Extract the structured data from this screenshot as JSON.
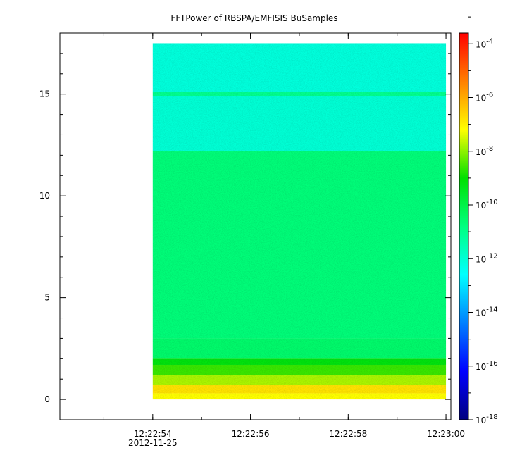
{
  "chart_data": {
    "type": "heatmap",
    "title": "FFTPower of RBSPA/EMFISIS  BuSamples",
    "xlabel": "",
    "ylabel": "",
    "x_tick_labels": [
      "12:22:54",
      "12:22:56",
      "12:22:58",
      "12:23:00"
    ],
    "x_date_label": "2012-11-25",
    "xlim_seconds": [
      -1.9,
      6.1
    ],
    "data_x_range_seconds": [
      0,
      6
    ],
    "y_ticks": [
      0,
      5,
      10,
      15
    ],
    "ylim": [
      -1,
      18
    ],
    "data_y_range": [
      0,
      17.5
    ],
    "colorbar": {
      "scale": "log",
      "range": [
        -18,
        -3.6
      ],
      "tick_exponents": [
        -4,
        -6,
        -8,
        -10,
        -12,
        -14,
        -16,
        -18
      ],
      "tick_base": "10"
    },
    "bands": [
      {
        "y_from": 0.0,
        "y_to": 0.3,
        "log_power": -7.2
      },
      {
        "y_from": 0.3,
        "y_to": 0.7,
        "log_power": -6.8
      },
      {
        "y_from": 0.7,
        "y_to": 1.2,
        "log_power": -7.8
      },
      {
        "y_from": 1.2,
        "y_to": 1.7,
        "log_power": -8.6
      },
      {
        "y_from": 1.7,
        "y_to": 2.0,
        "log_power": -9.2
      },
      {
        "y_from": 2.0,
        "y_to": 3.0,
        "log_power": -10.5
      },
      {
        "y_from": 3.0,
        "y_to": 12.2,
        "log_power": -10.7
      },
      {
        "y_from": 12.2,
        "y_to": 14.9,
        "log_power": -12.0
      },
      {
        "y_from": 14.9,
        "y_to": 15.1,
        "log_power": -11.0
      },
      {
        "y_from": 15.1,
        "y_to": 17.5,
        "log_power": -12.1
      }
    ]
  }
}
